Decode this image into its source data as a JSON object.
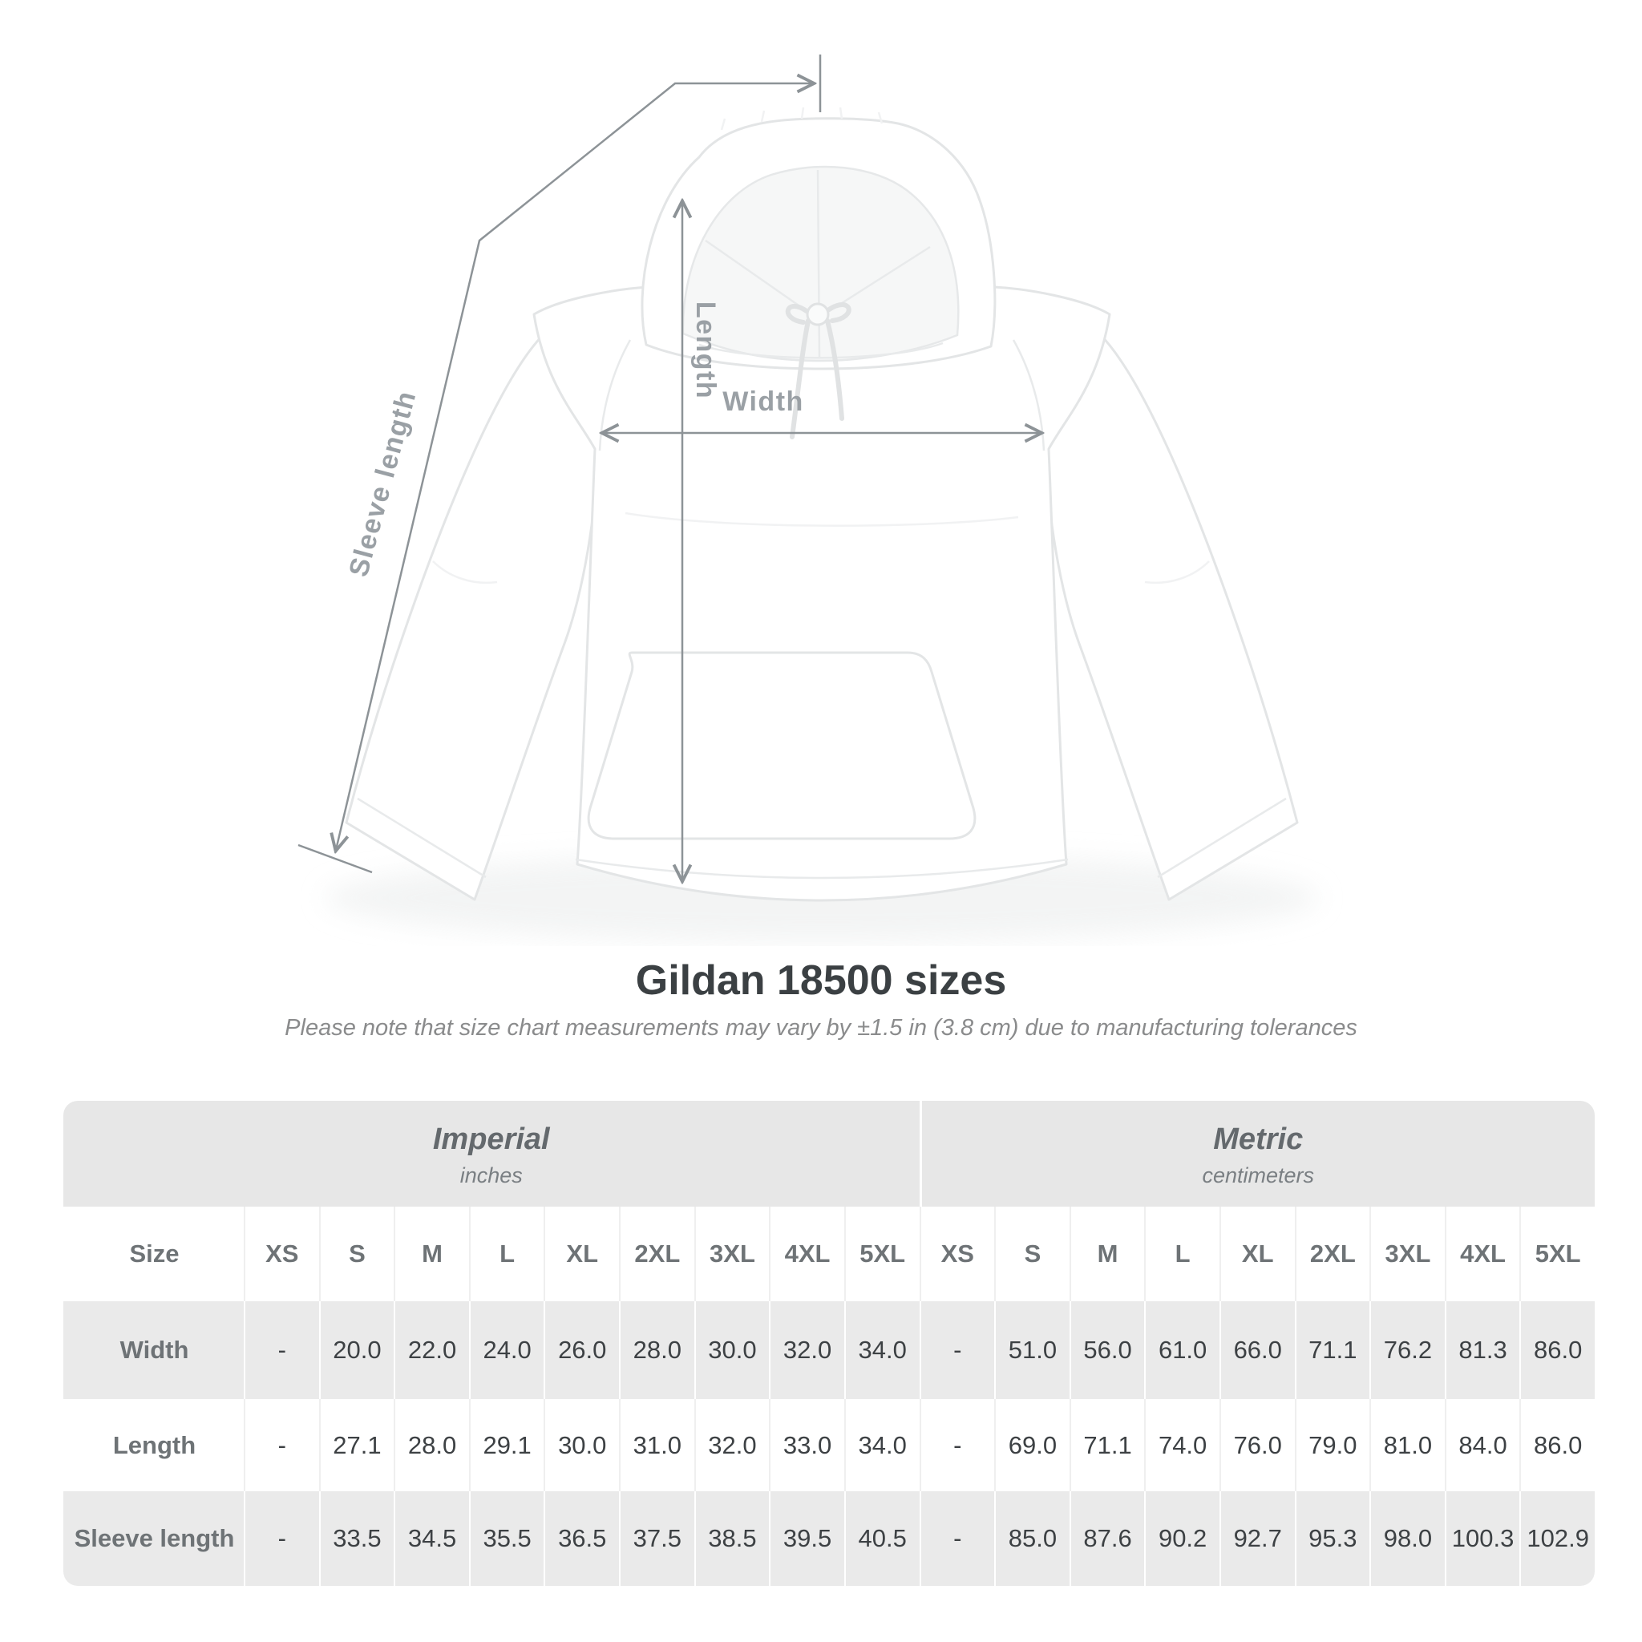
{
  "diagram": {
    "labels": {
      "length": "Length",
      "width": "Width",
      "sleeve": "Sleeve length"
    },
    "line_color": "#8d9397",
    "label_color": "#9aa0a5"
  },
  "title": "Gildan 18500 sizes",
  "subtitle": "Please note that size chart measurements may vary by ±1.5 in (3.8 cm) due to manufacturing tolerances",
  "table": {
    "corner_label": "Size",
    "groups": [
      {
        "label": "Imperial",
        "unit": "inches"
      },
      {
        "label": "Metric",
        "unit": "centimeters"
      }
    ],
    "sizes": [
      "XS",
      "S",
      "M",
      "L",
      "XL",
      "2XL",
      "3XL",
      "4XL",
      "5XL"
    ],
    "rows": [
      {
        "label": "Width",
        "imperial": [
          "-",
          "20.0",
          "22.0",
          "24.0",
          "26.0",
          "28.0",
          "30.0",
          "32.0",
          "34.0"
        ],
        "metric": [
          "-",
          "51.0",
          "56.0",
          "61.0",
          "66.0",
          "71.1",
          "76.2",
          "81.3",
          "86.0"
        ]
      },
      {
        "label": "Length",
        "imperial": [
          "-",
          "27.1",
          "28.0",
          "29.1",
          "30.0",
          "31.0",
          "32.0",
          "33.0",
          "34.0"
        ],
        "metric": [
          "-",
          "69.0",
          "71.1",
          "74.0",
          "76.0",
          "79.0",
          "81.0",
          "84.0",
          "86.0"
        ]
      },
      {
        "label": "Sleeve length",
        "imperial": [
          "-",
          "33.5",
          "34.5",
          "35.5",
          "36.5",
          "37.5",
          "38.5",
          "39.5",
          "40.5"
        ],
        "metric": [
          "-",
          "85.0",
          "87.6",
          "90.2",
          "92.7",
          "95.3",
          "98.0",
          "100.3",
          "102.9"
        ]
      }
    ]
  }
}
